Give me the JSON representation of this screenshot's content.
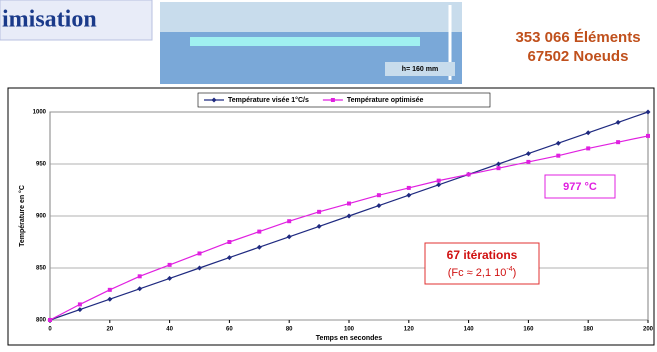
{
  "header": {
    "title_fragment": "imisation",
    "elements": "353 066 Éléments",
    "nodes": "67502 Noeuds",
    "mesh_label": "h= 160 mm"
  },
  "chart_data": {
    "type": "line",
    "x_label": "Temps en secondes",
    "y_label": "Température en °C",
    "x": [
      0,
      10,
      20,
      30,
      40,
      50,
      60,
      70,
      80,
      90,
      100,
      110,
      120,
      130,
      140,
      150,
      160,
      170,
      180,
      190,
      200
    ],
    "series": [
      {
        "name": "Température visée 1°C/s",
        "color": "#1f2a80",
        "marker": "diamond",
        "values": [
          800,
          810,
          820,
          830,
          840,
          850,
          860,
          870,
          880,
          890,
          900,
          910,
          920,
          930,
          940,
          950,
          960,
          970,
          980,
          990,
          1000
        ]
      },
      {
        "name": "Température optimisée",
        "color": "#e020e0",
        "marker": "square",
        "values": [
          800,
          815,
          829,
          842,
          853,
          864,
          875,
          885,
          895,
          904,
          912,
          920,
          927,
          934,
          940,
          946,
          952,
          958,
          965,
          971,
          977
        ]
      }
    ],
    "xlim": [
      0,
      200
    ],
    "xticks": [
      0,
      20,
      40,
      60,
      80,
      100,
      120,
      140,
      160,
      180,
      200
    ],
    "ylim": [
      800,
      1000
    ],
    "yticks": [
      800,
      850,
      900,
      950,
      1000
    ],
    "grid": true,
    "legend": "top",
    "annotations": {
      "final_temp": "977 °C",
      "iterations": "67 itérations",
      "criterion": "(Fc ≈ 2,1 10",
      "criterion_exp": "-4",
      "criterion_end": ")"
    }
  }
}
